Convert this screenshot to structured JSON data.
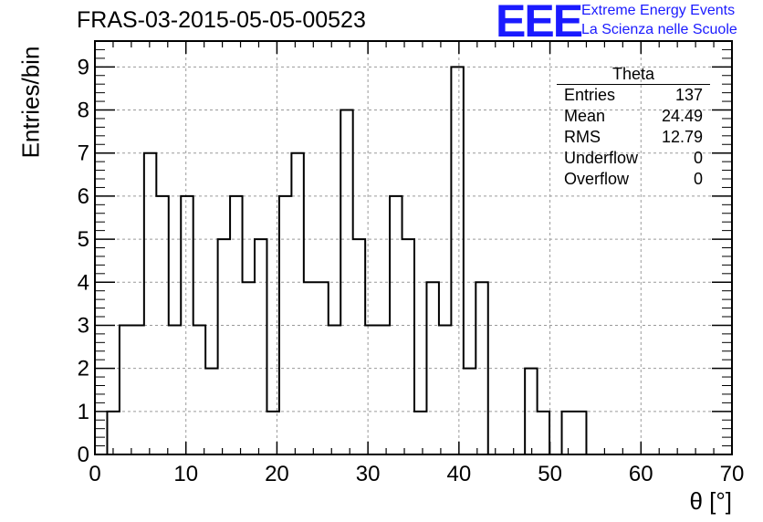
{
  "header": {
    "title": "FRAS-03-2015-05-05-00523",
    "logo_mark": "EEE",
    "logo_line1": "Extreme Energy Events",
    "logo_line2": "La Scienza nelle Scuole",
    "logo_color": "#1a1aff"
  },
  "stats": {
    "title": "Theta",
    "rows": [
      {
        "label": "Entries",
        "value": "137"
      },
      {
        "label": "Mean",
        "value": "24.49"
      },
      {
        "label": "RMS",
        "value": "12.79"
      },
      {
        "label": "Underflow",
        "value": "0"
      },
      {
        "label": "Overflow",
        "value": "0"
      }
    ]
  },
  "chart_data": {
    "type": "bar",
    "style": "step-histogram",
    "xlabel": "θ [°]",
    "ylabel": "Entries/bin",
    "xlim": [
      0,
      70
    ],
    "ylim": [
      0,
      9.6
    ],
    "bin_width": 1.35,
    "bin_start": 1.35,
    "bin_values": [
      1,
      3,
      3,
      7,
      6,
      3,
      6,
      3,
      2,
      5,
      6,
      4,
      5,
      1,
      6,
      7,
      4,
      4,
      3,
      8,
      5,
      3,
      3,
      6,
      5,
      1,
      4,
      3,
      9,
      2,
      4,
      0,
      0,
      0,
      2,
      1,
      0,
      1,
      1
    ],
    "x_ticks": [
      0,
      10,
      20,
      30,
      40,
      50,
      60,
      70
    ],
    "y_ticks": [
      0,
      1,
      2,
      3,
      4,
      5,
      6,
      7,
      8,
      9
    ],
    "grid": true,
    "line_color": "#000000"
  }
}
